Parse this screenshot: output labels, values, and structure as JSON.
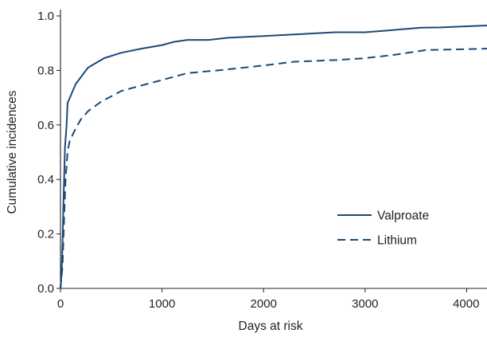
{
  "chart_data": {
    "type": "line",
    "title": "",
    "xlabel": "Days at risk",
    "ylabel": "Cumulative incidences",
    "xlim": [
      0,
      4200
    ],
    "ylim": [
      0,
      1.0
    ],
    "x_ticks": [
      0,
      1000,
      2000,
      3000,
      4000
    ],
    "x_tick_labels": [
      "0",
      "1000",
      "2000",
      "3000",
      "4000"
    ],
    "y_ticks": [
      0.0,
      0.2,
      0.4,
      0.6,
      0.8,
      1.0
    ],
    "y_tick_labels": [
      "0.0",
      "0.2",
      "0.4",
      "0.6",
      "0.8",
      "1.0"
    ],
    "grid": false,
    "legend_position": "right",
    "series": [
      {
        "name": "Valproate",
        "style": "solid",
        "color": "#1a4a78",
        "points": [
          [
            0,
            0.0
          ],
          [
            10,
            0.05
          ],
          [
            20,
            0.17
          ],
          [
            30,
            0.32
          ],
          [
            45,
            0.52
          ],
          [
            60,
            0.6
          ],
          [
            70,
            0.68
          ],
          [
            150,
            0.75
          ],
          [
            270,
            0.81
          ],
          [
            430,
            0.845
          ],
          [
            600,
            0.865
          ],
          [
            800,
            0.88
          ],
          [
            1000,
            0.893
          ],
          [
            1120,
            0.905
          ],
          [
            1250,
            0.912
          ],
          [
            1460,
            0.912
          ],
          [
            1650,
            0.92
          ],
          [
            2000,
            0.926
          ],
          [
            2300,
            0.932
          ],
          [
            2700,
            0.94
          ],
          [
            3000,
            0.94
          ],
          [
            3200,
            0.946
          ],
          [
            3550,
            0.957
          ],
          [
            3750,
            0.958
          ],
          [
            4000,
            0.962
          ],
          [
            4200,
            0.965
          ]
        ]
      },
      {
        "name": "Lithium",
        "style": "dashed",
        "color": "#1a4a78",
        "points": [
          [
            0,
            0.0
          ],
          [
            20,
            0.08
          ],
          [
            35,
            0.25
          ],
          [
            50,
            0.4
          ],
          [
            70,
            0.5
          ],
          [
            90,
            0.54
          ],
          [
            140,
            0.58
          ],
          [
            200,
            0.62
          ],
          [
            270,
            0.65
          ],
          [
            400,
            0.685
          ],
          [
            600,
            0.725
          ],
          [
            800,
            0.745
          ],
          [
            1000,
            0.765
          ],
          [
            1250,
            0.79
          ],
          [
            1600,
            0.802
          ],
          [
            2000,
            0.818
          ],
          [
            2300,
            0.832
          ],
          [
            2700,
            0.838
          ],
          [
            3000,
            0.845
          ],
          [
            3300,
            0.858
          ],
          [
            3600,
            0.875
          ],
          [
            4000,
            0.878
          ],
          [
            4200,
            0.88
          ]
        ]
      }
    ]
  }
}
